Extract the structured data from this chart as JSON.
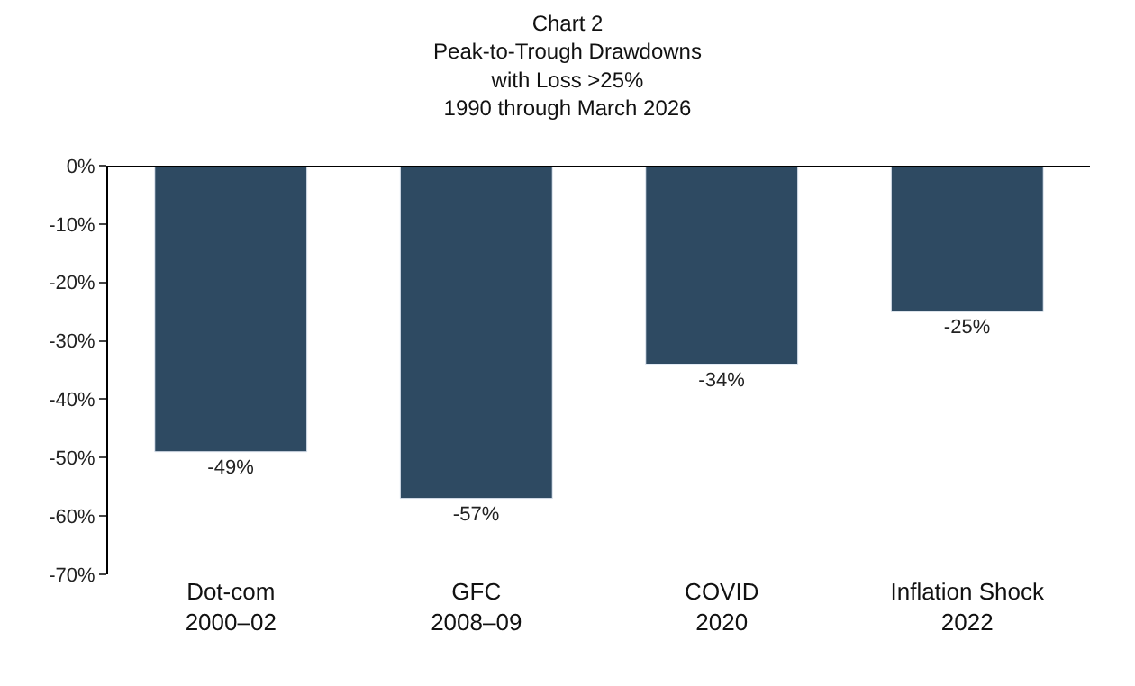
{
  "chart_data": {
    "type": "bar",
    "title": "Chart 2\nPeak-to-Trough Drawdowns\nwith Loss >25%\n1990 through March 2026",
    "categories": [
      "Dot-com\n2000–02",
      "GFC\n2008–09",
      "COVID\n2020",
      "Inflation Shock\n2022"
    ],
    "values": [
      -49,
      -57,
      -34,
      -25
    ],
    "value_labels": [
      "-49%",
      "-57%",
      "-34%",
      "-25%"
    ],
    "color": "#2e4a62",
    "ylim": [
      -70,
      0
    ],
    "yticks": [
      {
        "value": 0,
        "label": "0%"
      },
      {
        "value": -10,
        "label": "-10%"
      },
      {
        "value": -20,
        "label": "-20%"
      },
      {
        "value": -30,
        "label": "-30%"
      },
      {
        "value": -40,
        "label": "-40%"
      },
      {
        "value": -50,
        "label": "-50%"
      },
      {
        "value": -60,
        "label": "-60%"
      },
      {
        "value": -70,
        "label": "-70%"
      }
    ],
    "legend": false
  }
}
